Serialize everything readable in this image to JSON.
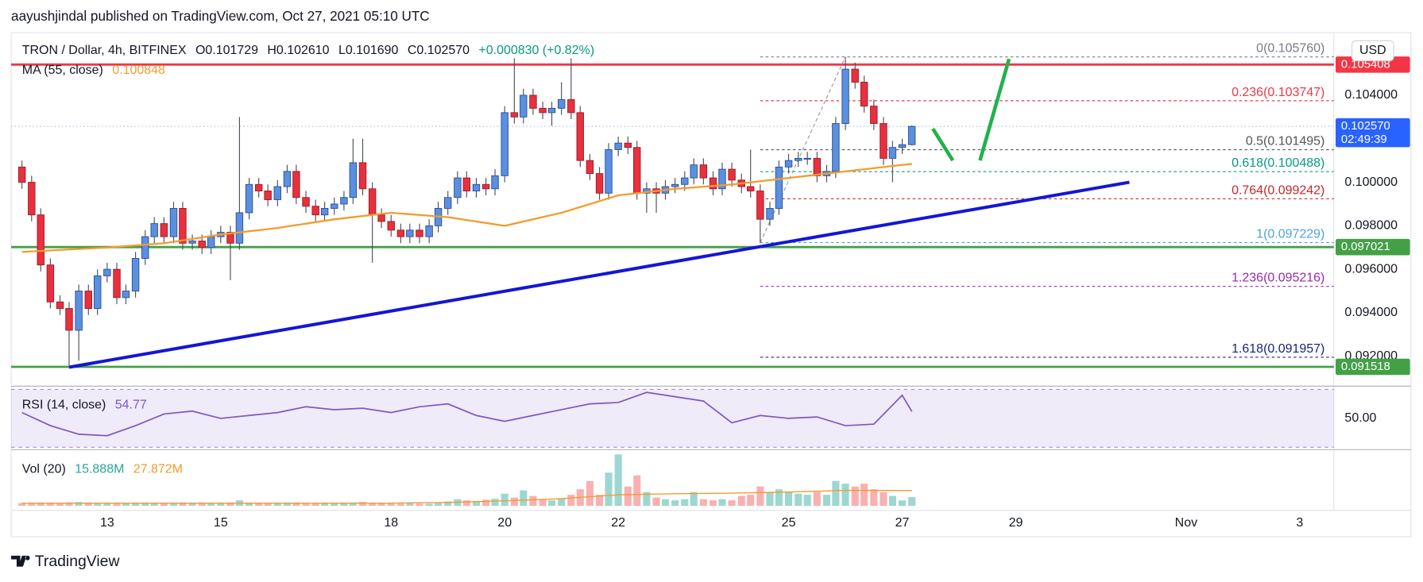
{
  "header": {
    "published": "aayushjindal published on TradingView.com, Oct 27, 2021 05:10 UTC"
  },
  "footer": {
    "brand": "TradingView"
  },
  "chart_data": [
    {
      "type": "candlestick",
      "title": "TRON / Dollar, 4h, BITFINEX",
      "legend": [
        "O0.101729",
        "H0.102610",
        "L0.101690",
        "C0.102570",
        "+0.000830 (+0.82%)"
      ],
      "currency": "USD",
      "up_color": "#5b8fe0",
      "down_color": "#e8303f",
      "xlim": [
        11.31,
        34.6
      ],
      "xticks": [
        13,
        15,
        18,
        20,
        22,
        25,
        27,
        29,
        {
          "value": 32,
          "label": "Nov"
        },
        {
          "value": 34,
          "label": "3"
        }
      ],
      "ylim": [
        0.09067,
        0.10671
      ],
      "yticks": [
        {
          "value": 0.092,
          "label": "0.092000"
        },
        {
          "value": 0.094,
          "label": "0.094000"
        },
        {
          "value": 0.096,
          "label": "0.096000"
        },
        {
          "value": 0.098,
          "label": "0.098000"
        },
        {
          "value": 0.1,
          "label": "0.100000"
        },
        {
          "value": 0.104,
          "label": "0.104000"
        }
      ],
      "x": [
        11.5,
        11.67,
        11.83,
        12,
        12.17,
        12.33,
        12.5,
        12.67,
        12.83,
        13,
        13.17,
        13.33,
        13.5,
        13.67,
        13.83,
        14,
        14.17,
        14.33,
        14.5,
        14.67,
        14.83,
        15,
        15.17,
        15.33,
        15.5,
        15.67,
        15.83,
        16,
        16.17,
        16.33,
        16.5,
        16.67,
        16.83,
        17,
        17.17,
        17.33,
        17.5,
        17.67,
        17.83,
        18,
        18.17,
        18.33,
        18.5,
        18.67,
        18.83,
        19,
        19.17,
        19.33,
        19.5,
        19.67,
        19.83,
        20,
        20.17,
        20.33,
        20.5,
        20.67,
        20.83,
        21,
        21.17,
        21.33,
        21.5,
        21.67,
        21.83,
        22,
        22.17,
        22.33,
        22.5,
        22.67,
        22.83,
        23,
        23.17,
        23.33,
        23.5,
        23.67,
        23.83,
        24,
        24.17,
        24.33,
        24.5,
        24.67,
        24.83,
        25,
        25.17,
        25.33,
        25.5,
        25.67,
        25.83,
        26,
        26.17,
        26.33,
        26.5,
        26.67,
        26.83,
        27,
        27.17
      ],
      "open": [
        0.1007,
        0.1,
        0.0985,
        0.0962,
        0.0945,
        0.0942,
        0.0932,
        0.095,
        0.0942,
        0.0957,
        0.096,
        0.0947,
        0.095,
        0.0965,
        0.0975,
        0.0981,
        0.0975,
        0.0988,
        0.0972,
        0.0973,
        0.097,
        0.0975,
        0.0977,
        0.0972,
        0.0986,
        0.0999,
        0.0996,
        0.0992,
        0.0998,
        0.1005,
        0.0993,
        0.0989,
        0.0985,
        0.0988,
        0.099,
        0.0993,
        0.1009,
        0.0997,
        0.0985,
        0.0982,
        0.0978,
        0.0975,
        0.0978,
        0.0975,
        0.098,
        0.0988,
        0.0993,
        0.1002,
        0.0996,
        0.0999,
        0.0997,
        0.1003,
        0.1032,
        0.103,
        0.104,
        0.1034,
        0.1032,
        0.1034,
        0.1038,
        0.1032,
        0.101,
        0.1004,
        0.0995,
        0.1015,
        0.1018,
        0.1016,
        0.0995,
        0.0997,
        0.0995,
        0.0998,
        0.0999,
        0.1002,
        0.1008,
        0.1002,
        0.0997,
        0.1006,
        0.1001,
        0.0998,
        0.0996,
        0.0983,
        0.0988,
        0.1007,
        0.101,
        0.1011,
        0.1011,
        0.1003,
        0.1005,
        0.1027,
        0.1052,
        0.1046,
        0.1035,
        0.1027,
        0.1011,
        0.1016,
        0.101729
      ],
      "high": [
        0.101,
        0.1003,
        0.0988,
        0.0965,
        0.0948,
        0.0945,
        0.0953,
        0.0953,
        0.096,
        0.0963,
        0.0963,
        0.0953,
        0.0968,
        0.0978,
        0.0984,
        0.0984,
        0.0991,
        0.0991,
        0.0976,
        0.0976,
        0.0978,
        0.098,
        0.098,
        0.103,
        0.1002,
        0.1002,
        0.0999,
        0.1001,
        0.1008,
        0.1008,
        0.0996,
        0.0992,
        0.0991,
        0.0993,
        0.0996,
        0.102,
        0.102,
        0.1,
        0.0988,
        0.0985,
        0.0981,
        0.0981,
        0.0981,
        0.0983,
        0.0991,
        0.0996,
        0.1005,
        0.1005,
        0.1002,
        0.1002,
        0.1006,
        0.1035,
        0.1057,
        0.1043,
        0.1043,
        0.1037,
        0.1037,
        0.1046,
        0.1057,
        0.1035,
        0.1013,
        0.1007,
        0.1018,
        0.1021,
        0.1021,
        0.1019,
        0.1,
        0.1,
        0.1001,
        0.1002,
        0.1005,
        0.1011,
        0.1011,
        0.1005,
        0.1009,
        0.1009,
        0.1004,
        0.1015,
        0.0999,
        0.0991,
        0.101,
        0.1013,
        0.1014,
        0.1014,
        0.1014,
        0.1008,
        0.103,
        0.10576,
        0.1055,
        0.1049,
        0.1038,
        0.103,
        0.1019,
        0.102,
        0.10261
      ],
      "low": [
        0.0997,
        0.0982,
        0.0959,
        0.0942,
        0.0939,
        0.0915,
        0.0918,
        0.0939,
        0.0939,
        0.0954,
        0.0944,
        0.0944,
        0.0947,
        0.0962,
        0.0972,
        0.0972,
        0.0972,
        0.0969,
        0.0969,
        0.0967,
        0.0967,
        0.0972,
        0.0955,
        0.0969,
        0.0983,
        0.0993,
        0.0989,
        0.0989,
        0.0995,
        0.099,
        0.0986,
        0.0982,
        0.0982,
        0.0985,
        0.0987,
        0.099,
        0.0994,
        0.0963,
        0.0979,
        0.0975,
        0.0972,
        0.0972,
        0.0972,
        0.0972,
        0.0977,
        0.0985,
        0.099,
        0.0993,
        0.0993,
        0.0994,
        0.0994,
        0.1,
        0.1027,
        0.1027,
        0.1031,
        0.1029,
        0.1026,
        0.1031,
        0.1029,
        0.1007,
        0.1001,
        0.0992,
        0.0992,
        0.1012,
        0.1013,
        0.0992,
        0.0986,
        0.0986,
        0.0992,
        0.0995,
        0.0996,
        0.0999,
        0.0999,
        0.0994,
        0.0994,
        0.0998,
        0.0995,
        0.0993,
        0.0972,
        0.098,
        0.0985,
        0.1004,
        0.1007,
        0.1008,
        0.1,
        0.1,
        0.1002,
        0.1024,
        0.1043,
        0.1032,
        0.1024,
        0.1008,
        0.1,
        0.1013,
        0.10169
      ],
      "close": [
        0.1,
        0.0985,
        0.0962,
        0.0945,
        0.0942,
        0.0932,
        0.095,
        0.0942,
        0.0957,
        0.096,
        0.0947,
        0.095,
        0.0965,
        0.0975,
        0.0981,
        0.0975,
        0.0988,
        0.0972,
        0.0973,
        0.097,
        0.0975,
        0.0977,
        0.0972,
        0.0986,
        0.0999,
        0.0996,
        0.0992,
        0.0998,
        0.1005,
        0.0993,
        0.0989,
        0.0985,
        0.0988,
        0.099,
        0.0993,
        0.1009,
        0.0997,
        0.0985,
        0.0982,
        0.0978,
        0.0975,
        0.0978,
        0.0975,
        0.098,
        0.0988,
        0.0993,
        0.1002,
        0.0996,
        0.0999,
        0.0997,
        0.1003,
        0.1032,
        0.103,
        0.104,
        0.1034,
        0.1032,
        0.1034,
        0.1038,
        0.1032,
        0.101,
        0.1004,
        0.0995,
        0.1015,
        0.1018,
        0.1016,
        0.0995,
        0.0997,
        0.0995,
        0.0998,
        0.0999,
        0.1002,
        0.1008,
        0.1002,
        0.0997,
        0.1006,
        0.1001,
        0.0998,
        0.0996,
        0.0983,
        0.0988,
        0.1007,
        0.101,
        0.1011,
        0.1011,
        0.1003,
        0.1005,
        0.1027,
        0.1052,
        0.1046,
        0.1035,
        0.1027,
        0.1011,
        0.1016,
        0.101729,
        0.10257
      ],
      "ma": {
        "name": "MA (55, close)",
        "color": "#f39c2c",
        "x": [
          11.5,
          13,
          14,
          15,
          16,
          17,
          18,
          19,
          20,
          21,
          22,
          23,
          24,
          25,
          26,
          27.17
        ],
        "values": [
          0.0968,
          0.097,
          0.0972,
          0.0976,
          0.0979,
          0.0983,
          0.0986,
          0.0984,
          0.098,
          0.0986,
          0.0994,
          0.0997,
          0.0999,
          0.1002,
          0.1005,
          0.100848
        ]
      },
      "last_price": {
        "value": 0.10257,
        "label": "0.102570",
        "countdown": "02:49:39",
        "color": "#2962ff"
      },
      "hlines": [
        {
          "value": 0.105408,
          "color": "#f23645"
        },
        {
          "value": 0.097021,
          "color": "#43a047"
        },
        {
          "value": 0.091518,
          "color": "#43a047"
        }
      ],
      "trendline": {
        "x": [
          12.33,
          31.0
        ],
        "y": [
          0.0915,
          0.1
        ],
        "color": "#1515d6"
      },
      "fib_x": [
        24.5,
        26.0
      ],
      "fib": [
        {
          "value": 0.10576,
          "label": "0(0.105760)",
          "color": "#787b86"
        },
        {
          "value": 0.103747,
          "label": "0.236(0.103747)",
          "color": "#f23645"
        },
        {
          "value": 0.101495,
          "label": "0.5(0.101495)",
          "color": "#555555"
        },
        {
          "value": 0.100488,
          "label": "0.618(0.100488)",
          "color": "#089981"
        },
        {
          "value": 0.099242,
          "label": "0.764(0.099242)",
          "color": "#c62828"
        },
        {
          "value": 0.097229,
          "label": "1(0.097229)",
          "color": "#4ea4d8"
        },
        {
          "value": 0.095216,
          "label": "1.236(0.095216)",
          "color": "#9c27b0"
        },
        {
          "value": 0.091957,
          "label": "1.618(0.091957)",
          "color": "#1a237e"
        }
      ]
    },
    {
      "type": "line",
      "name": "RSI (14, close)",
      "color": "#7e57c2",
      "xlim": [
        11.31,
        34.6
      ],
      "ylim": [
        29,
        71
      ],
      "band": [
        30,
        70
      ],
      "yticks": [
        {
          "value": 50,
          "label": "50.00"
        }
      ],
      "x": [
        11.5,
        12,
        12.5,
        13,
        13.5,
        14,
        14.5,
        15,
        15.5,
        16,
        16.5,
        17,
        17.5,
        18,
        18.5,
        19,
        19.5,
        20,
        20.5,
        21,
        21.5,
        22,
        22.5,
        23,
        23.5,
        24,
        24.5,
        25,
        25.5,
        26,
        26.5,
        27,
        27.17
      ],
      "values": [
        54,
        45,
        39,
        38,
        45,
        53,
        55,
        50,
        52,
        54,
        58,
        56,
        57,
        54,
        58,
        60,
        52,
        48,
        52,
        56,
        60,
        61,
        68,
        65,
        62,
        47,
        52,
        50,
        51,
        45,
        46,
        66,
        54.77
      ]
    },
    {
      "type": "bar",
      "name": "Vol (20)",
      "legend_values": [
        "15.888M",
        "27.872M"
      ],
      "up_color": "rgba(38,166,154,0.45)",
      "down_color": "rgba(239,83,80,0.45)",
      "xlim": [
        11.31,
        34.6
      ],
      "ylim": [
        0,
        100
      ],
      "values": [
        5,
        4,
        6,
        5,
        4,
        6,
        7,
        5,
        4,
        5,
        4,
        4,
        5,
        6,
        5,
        4,
        5,
        6,
        5,
        4,
        4,
        5,
        6,
        10,
        6,
        5,
        4,
        5,
        6,
        5,
        4,
        4,
        5,
        4,
        5,
        6,
        7,
        6,
        5,
        4,
        4,
        5,
        4,
        4,
        5,
        8,
        12,
        10,
        9,
        11,
        13,
        22,
        15,
        28,
        18,
        12,
        10,
        14,
        20,
        30,
        45,
        20,
        60,
        93,
        35,
        55,
        25,
        15,
        12,
        10,
        12,
        25,
        12,
        10,
        12,
        10,
        18,
        20,
        35,
        25,
        30,
        25,
        22,
        20,
        25,
        20,
        45,
        40,
        35,
        40,
        30,
        25,
        18,
        10,
        15.888
      ],
      "ma": {
        "color": "#f39c2c",
        "x": [
          11.5,
          18,
          19,
          20,
          21,
          22,
          23,
          24,
          25,
          26,
          27.17
        ],
        "values": [
          5,
          5,
          6,
          9,
          13,
          20,
          22,
          23,
          25,
          28,
          27.872
        ]
      }
    }
  ]
}
